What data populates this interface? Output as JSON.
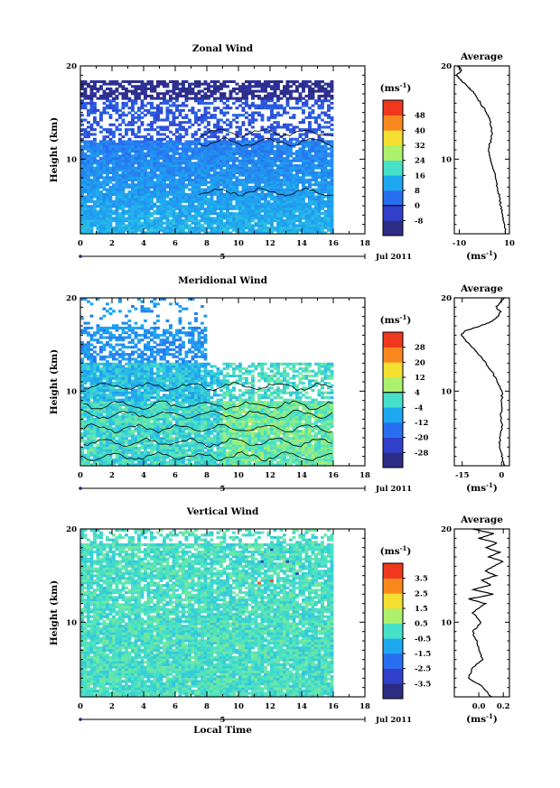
{
  "chart_data": [
    {
      "type": "heatmap",
      "title": "Zonal Wind",
      "xlabel": "",
      "ylabel": "Height (km)",
      "xlim": [
        0,
        18
      ],
      "ylim": [
        2,
        20
      ],
      "x_ticks": [
        "0",
        "2",
        "4",
        "6",
        "8",
        "10",
        "12",
        "14",
        "16",
        "18"
      ],
      "y_ticks": [
        "10",
        "20"
      ],
      "date_marker": "5",
      "date_label": "Jul 2011",
      "colorbar": {
        "unit": "(ms",
        "unit_exp": "-1",
        "unit_close": ")",
        "levels": [
          -8,
          0,
          8,
          16,
          24,
          32,
          40,
          48
        ],
        "level_labels": [
          "-8",
          "0",
          "8",
          "16",
          "24",
          "32",
          "40",
          "48"
        ],
        "vmin": -12,
        "vmax": 52,
        "zero_marked": true
      },
      "field_description": {
        "low_layer_ms": 6,
        "jet_layer_ms": 0,
        "upper_layer_ms": -9,
        "data_end_hour": 16
      },
      "average": {
        "title": "Average",
        "xlim": [
          -12,
          10
        ],
        "x_ticks": [
          "-10",
          "10"
        ],
        "xlabel": "(ms",
        "xlabel_exp": "-1",
        "xlabel_close": ")",
        "y_ticks": [
          "10",
          "20"
        ],
        "heights_km": [
          2.0,
          3.0,
          4.0,
          5.0,
          6.0,
          7.0,
          8.0,
          9.0,
          10.0,
          11.0,
          12.0,
          13.0,
          14.0,
          15.0,
          16.0,
          17.0,
          17.5,
          18.0,
          18.5,
          19.0,
          19.5,
          20.0
        ],
        "values": [
          8.5,
          8.0,
          7.2,
          6.5,
          6.0,
          5.2,
          4.5,
          3.4,
          2.5,
          1.8,
          2.5,
          3.0,
          2.4,
          1.0,
          -1.5,
          -3.8,
          -5.5,
          -7.5,
          -9.5,
          -11.0,
          -9.0,
          -10.5
        ]
      }
    },
    {
      "type": "heatmap",
      "title": "Meridional Wind",
      "xlabel": "",
      "ylabel": "Height (km)",
      "xlim": [
        0,
        18
      ],
      "ylim": [
        2,
        20
      ],
      "x_ticks": [
        "0",
        "2",
        "4",
        "6",
        "8",
        "10",
        "12",
        "14",
        "16",
        "18"
      ],
      "y_ticks": [
        "10",
        "20"
      ],
      "date_marker": "5",
      "date_label": "Jul 2011",
      "colorbar": {
        "unit": "(ms",
        "unit_exp": "-1",
        "unit_close": ")",
        "levels": [
          -28,
          -20,
          -12,
          -4,
          4,
          12,
          20,
          28
        ],
        "level_labels": [
          "-28",
          "-20",
          "-12",
          "-4",
          "4",
          "12",
          "20",
          "28"
        ],
        "vmin": -32,
        "vmax": 32,
        "zero_marked": true
      },
      "field_description": {
        "low_layer_ms": -1,
        "mid_layer_ms": -5,
        "upper_layer_ms": -11,
        "data_end_hour": 16
      },
      "average": {
        "title": "Average",
        "xlim": [
          -18,
          3
        ],
        "x_ticks": [
          "-15",
          "0"
        ],
        "xlabel": "(ms",
        "xlabel_exp": "-1",
        "xlabel_close": ")",
        "y_ticks": [
          "10",
          "20"
        ],
        "heights_km": [
          2.0,
          3.0,
          4.0,
          5.0,
          6.0,
          7.0,
          8.0,
          9.0,
          10.0,
          11.0,
          12.0,
          13.0,
          14.0,
          15.0,
          15.5,
          16.0,
          16.5,
          17.0,
          17.5,
          18.0,
          18.5,
          19.0,
          19.5,
          20.0
        ],
        "values": [
          1.2,
          0.2,
          -0.8,
          -0.6,
          0.3,
          -0.4,
          0.1,
          0.2,
          0.1,
          -1.5,
          -3.5,
          -6.0,
          -9.0,
          -12.0,
          -14.0,
          -15.5,
          -13.5,
          -8.0,
          -3.5,
          -1.5,
          -0.5,
          -2.0,
          -0.5,
          1.0
        ]
      }
    },
    {
      "type": "heatmap",
      "title": "Vertical Wind",
      "xlabel": "Local Time",
      "ylabel": "Height (km)",
      "xlim": [
        0,
        18
      ],
      "ylim": [
        2,
        20
      ],
      "x_ticks": [
        "0",
        "2",
        "4",
        "6",
        "8",
        "10",
        "12",
        "14",
        "16",
        "18"
      ],
      "y_ticks": [
        "10",
        "20"
      ],
      "date_marker": "5",
      "date_label": "Jul 2011",
      "colorbar": {
        "unit": "(ms",
        "unit_exp": "-1",
        "unit_close": ")",
        "levels": [
          -3.5,
          -2.5,
          -1.5,
          -0.5,
          0.5,
          1.5,
          2.5,
          3.5
        ],
        "level_labels": [
          "-3.5",
          "-2.5",
          "-1.5",
          "-0.5",
          "0.5",
          "1.5",
          "2.5",
          "3.5"
        ],
        "vmin": -4,
        "vmax": 4,
        "zero_marked": false
      },
      "field_description": {
        "background_ms": 0.0,
        "data_end_hour": 16
      },
      "average": {
        "title": "Average",
        "xlim": [
          -0.2,
          0.25
        ],
        "x_ticks": [
          "0.0",
          "0.2"
        ],
        "xlabel": "(ms",
        "xlabel_exp": "-1",
        "xlabel_close": ")",
        "y_ticks": [
          "10",
          "20"
        ],
        "heights_km": [
          2.0,
          3.0,
          4.0,
          5.0,
          6.0,
          7.0,
          8.0,
          9.0,
          10.0,
          11.0,
          12.0,
          12.5,
          13.0,
          13.5,
          14.0,
          14.5,
          15.0,
          15.5,
          16.0,
          16.5,
          17.0,
          17.5,
          18.0,
          18.5,
          19.0,
          19.5,
          20.0
        ],
        "values": [
          0.1,
          0.04,
          -0.08,
          -0.06,
          0.03,
          0.0,
          -0.02,
          -0.05,
          0.02,
          -0.05,
          0.05,
          -0.08,
          0.12,
          -0.05,
          0.1,
          0.02,
          0.14,
          0.05,
          0.12,
          0.2,
          0.08,
          0.17,
          0.06,
          0.15,
          0.0,
          0.12,
          -0.05
        ]
      }
    }
  ]
}
